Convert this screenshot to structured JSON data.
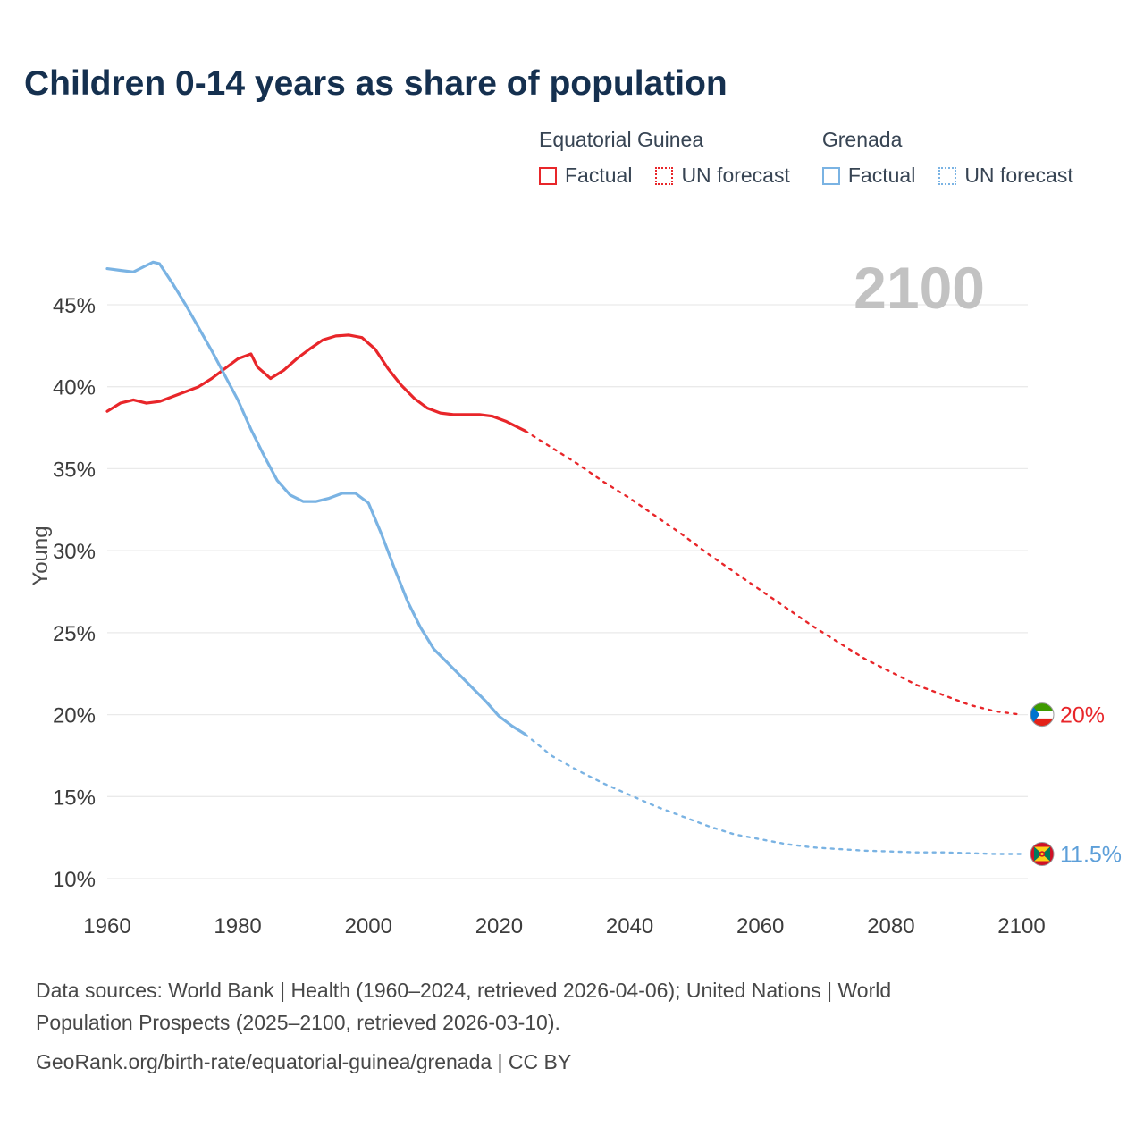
{
  "title": "Children 0-14 years as share of population",
  "watermark": "2100",
  "legend": {
    "groups": [
      {
        "name": "Equatorial Guinea",
        "color": "#e8262a",
        "items": [
          {
            "label": "Factual",
            "style": "solid"
          },
          {
            "label": "UN forecast",
            "style": "dotted"
          }
        ]
      },
      {
        "name": "Grenada",
        "color": "#7ab3e3",
        "items": [
          {
            "label": "Factual",
            "style": "solid"
          },
          {
            "label": "UN forecast",
            "style": "dotted"
          }
        ]
      }
    ]
  },
  "footer": {
    "lines": [
      "Data sources: World Bank | Health (1960–2024, retrieved 2026-04-06); United Nations | World",
      "Population Prospects (2025–2100, retrieved 2026-03-10).",
      "GeoRank.org/birth-rate/equatorial-guinea/grenada | CC BY"
    ]
  },
  "chart_data": {
    "type": "line",
    "title": "Children 0-14 years as share of population",
    "xlabel": "",
    "ylabel": "Young",
    "xlim": [
      1960,
      2100
    ],
    "ylim": [
      10,
      45
    ],
    "yticks": [
      10,
      15,
      20,
      25,
      30,
      35,
      40,
      45
    ],
    "xticks": [
      1960,
      1980,
      2000,
      2020,
      2040,
      2060,
      2080,
      2100
    ],
    "grid": "horizontal",
    "legend_position": "top-right",
    "series": [
      {
        "id": "eg-factual",
        "name": "Equatorial Guinea Factual",
        "color": "#e8262a",
        "style": "solid",
        "points": [
          [
            1960,
            38.5
          ],
          [
            1962,
            39.0
          ],
          [
            1964,
            39.2
          ],
          [
            1966,
            39.0
          ],
          [
            1968,
            39.1
          ],
          [
            1970,
            39.4
          ],
          [
            1972,
            39.7
          ],
          [
            1974,
            40.0
          ],
          [
            1976,
            40.5
          ],
          [
            1978,
            41.1
          ],
          [
            1980,
            41.7
          ],
          [
            1982,
            42.0
          ],
          [
            1983,
            41.2
          ],
          [
            1985,
            40.5
          ],
          [
            1987,
            41.0
          ],
          [
            1989,
            41.7
          ],
          [
            1991,
            42.3
          ],
          [
            1993,
            42.85
          ],
          [
            1995,
            43.1
          ],
          [
            1997,
            43.15
          ],
          [
            1999,
            43.0
          ],
          [
            2001,
            42.3
          ],
          [
            2003,
            41.1
          ],
          [
            2005,
            40.1
          ],
          [
            2007,
            39.3
          ],
          [
            2009,
            38.7
          ],
          [
            2011,
            38.4
          ],
          [
            2013,
            38.3
          ],
          [
            2015,
            38.3
          ],
          [
            2017,
            38.3
          ],
          [
            2019,
            38.2
          ],
          [
            2021,
            37.9
          ],
          [
            2023,
            37.5
          ],
          [
            2024,
            37.3
          ]
        ]
      },
      {
        "id": "eg-forecast",
        "name": "Equatorial Guinea UN forecast",
        "color": "#e8262a",
        "style": "dashed",
        "points": [
          [
            2024,
            37.3
          ],
          [
            2028,
            36.3
          ],
          [
            2032,
            35.3
          ],
          [
            2036,
            34.2
          ],
          [
            2040,
            33.2
          ],
          [
            2044,
            32.1
          ],
          [
            2048,
            31.0
          ],
          [
            2052,
            29.8
          ],
          [
            2056,
            28.7
          ],
          [
            2060,
            27.6
          ],
          [
            2064,
            26.5
          ],
          [
            2068,
            25.4
          ],
          [
            2072,
            24.4
          ],
          [
            2076,
            23.4
          ],
          [
            2080,
            22.6
          ],
          [
            2084,
            21.8
          ],
          [
            2088,
            21.2
          ],
          [
            2092,
            20.6
          ],
          [
            2096,
            20.2
          ],
          [
            2100,
            20.0
          ]
        ]
      },
      {
        "id": "gd-factual",
        "name": "Grenada Factual",
        "color": "#7ab3e3",
        "style": "solid",
        "points": [
          [
            1960,
            47.2
          ],
          [
            1962,
            47.1
          ],
          [
            1964,
            47.0
          ],
          [
            1966,
            47.4
          ],
          [
            1967,
            47.6
          ],
          [
            1968,
            47.5
          ],
          [
            1970,
            46.3
          ],
          [
            1972,
            45.0
          ],
          [
            1974,
            43.6
          ],
          [
            1976,
            42.2
          ],
          [
            1978,
            40.7
          ],
          [
            1980,
            39.2
          ],
          [
            1982,
            37.4
          ],
          [
            1984,
            35.8
          ],
          [
            1986,
            34.3
          ],
          [
            1988,
            33.4
          ],
          [
            1990,
            33.0
          ],
          [
            1992,
            33.0
          ],
          [
            1994,
            33.2
          ],
          [
            1996,
            33.5
          ],
          [
            1998,
            33.5
          ],
          [
            2000,
            32.9
          ],
          [
            2002,
            31.0
          ],
          [
            2004,
            28.9
          ],
          [
            2006,
            26.9
          ],
          [
            2008,
            25.3
          ],
          [
            2010,
            24.0
          ],
          [
            2012,
            23.2
          ],
          [
            2014,
            22.4
          ],
          [
            2016,
            21.6
          ],
          [
            2018,
            20.8
          ],
          [
            2020,
            19.9
          ],
          [
            2022,
            19.3
          ],
          [
            2024,
            18.8
          ]
        ]
      },
      {
        "id": "gd-forecast",
        "name": "Grenada UN forecast",
        "color": "#7ab3e3",
        "style": "dashed",
        "points": [
          [
            2024,
            18.8
          ],
          [
            2028,
            17.5
          ],
          [
            2032,
            16.6
          ],
          [
            2036,
            15.8
          ],
          [
            2040,
            15.1
          ],
          [
            2044,
            14.4
          ],
          [
            2048,
            13.8
          ],
          [
            2052,
            13.2
          ],
          [
            2056,
            12.7
          ],
          [
            2060,
            12.4
          ],
          [
            2064,
            12.1
          ],
          [
            2068,
            11.9
          ],
          [
            2072,
            11.8
          ],
          [
            2076,
            11.7
          ],
          [
            2080,
            11.65
          ],
          [
            2084,
            11.6
          ],
          [
            2088,
            11.6
          ],
          [
            2092,
            11.55
          ],
          [
            2096,
            11.5
          ],
          [
            2100,
            11.5
          ]
        ]
      }
    ],
    "end_labels": [
      {
        "text": "20%",
        "color": "#e8262a",
        "flag": "equatorial-guinea",
        "x": 2100,
        "y": 20.0
      },
      {
        "text": "11.5%",
        "color": "#5d9fd9",
        "flag": "grenada",
        "x": 2100,
        "y": 11.5
      }
    ]
  }
}
